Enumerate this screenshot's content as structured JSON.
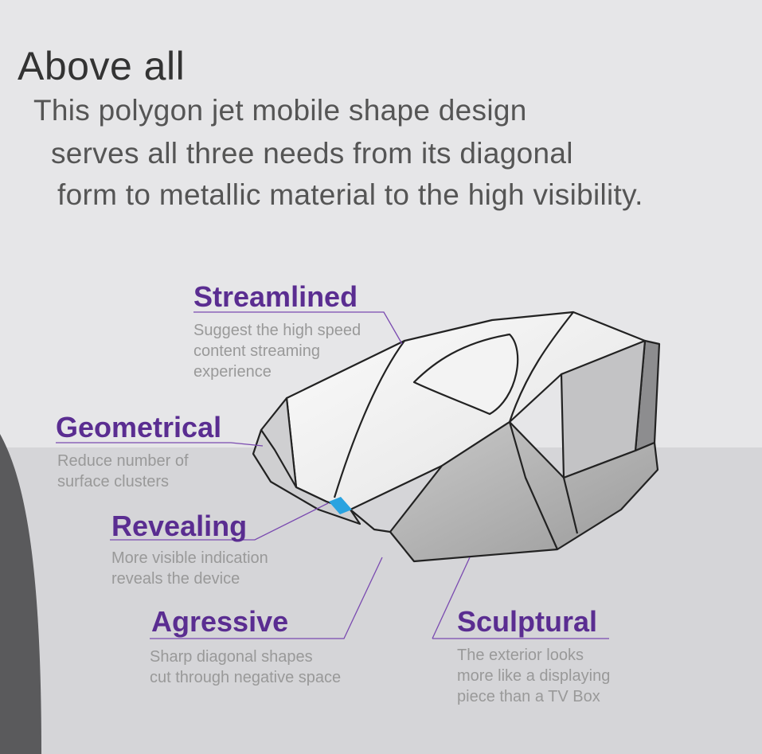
{
  "header": {
    "title": "Above all",
    "lines": [
      "This polygon jet mobile shape design",
      "serves all three needs from its diagonal",
      "form to metallic material to the high visibility."
    ]
  },
  "callouts": [
    {
      "title": "Streamlined",
      "desc": "Suggest the high speed\ncontent streaming\nexperience"
    },
    {
      "title": "Geometrical",
      "desc": "Reduce number of\nsurface clusters"
    },
    {
      "title": "Revealing",
      "desc": "More visible indication\nreveals the device"
    },
    {
      "title": "Agressive",
      "desc": "Sharp diagonal shapes\ncut through negative space"
    },
    {
      "title": "Sculptural",
      "desc": "The exterior looks\nmore like a displaying\npiece than a TV Box"
    }
  ],
  "colors": {
    "accent": "#5a2d91",
    "indicator": "#29a3e0",
    "background": "#e6e6e8"
  }
}
